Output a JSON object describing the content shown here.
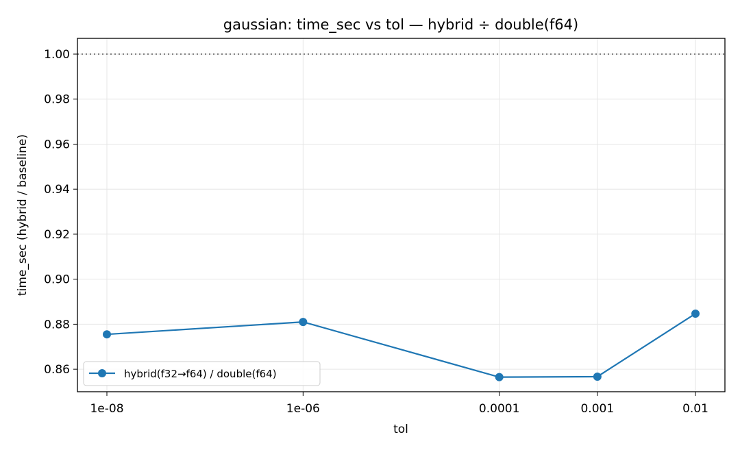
{
  "chart_data": {
    "type": "line",
    "title": "gaussian: time_sec vs tol — hybrid ÷ double(f64)",
    "xlabel": "tol",
    "ylabel": "time_sec (hybrid / baseline)",
    "categories": [
      "1e-08",
      "1e-06",
      "0.0001",
      "0.001",
      "0.01"
    ],
    "x_scale": "log",
    "xlim": [
      "1e-08",
      "0.01"
    ],
    "ylim": [
      0.85,
      1.007
    ],
    "yticks": [
      "0.86",
      "0.88",
      "0.90",
      "0.92",
      "0.94",
      "0.96",
      "0.98",
      "1.00"
    ],
    "grid": true,
    "legend_location": "lower-left",
    "reference_line": {
      "y": 1.0,
      "style": "dotted",
      "color": "#808080"
    },
    "series": [
      {
        "name": "hybrid(f32→f64) / double(f64)",
        "color": "#1f77b4",
        "marker": "circle",
        "values": [
          0.8755,
          0.881,
          0.8565,
          0.8567,
          0.8847
        ]
      }
    ]
  }
}
